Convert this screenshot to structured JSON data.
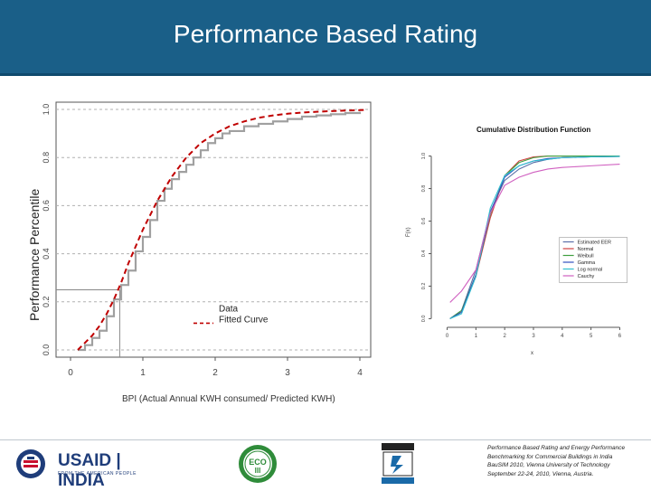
{
  "header": {
    "title": "Performance Based Rating"
  },
  "colors": {
    "header_bg": "#1a5f88",
    "fitted_curve": "#c00000",
    "data_curve": "#a0a0a0"
  },
  "chart_data": [
    {
      "type": "line",
      "title": "",
      "xlabel": "BPI (Actual Annual KWH consumed/ Predicted KWH)",
      "ylabel": "Performance Percentile",
      "xlim": [
        -0.2,
        4.15
      ],
      "ylim": [
        -0.03,
        1.03
      ],
      "xticks": [
        "0",
        "1",
        "2",
        "3",
        "4"
      ],
      "yticks": [
        "0.0",
        "0.2",
        "0.4",
        "0.6",
        "0.8",
        "1.0"
      ],
      "grid": true,
      "legend": "inside-bottom-right",
      "legend_entries": [
        "Data",
        "Fitted Curve"
      ],
      "reference_point": {
        "x": 0.68,
        "y": 0.25
      },
      "series": [
        {
          "name": "Data",
          "style": "step",
          "x": [
            0.1,
            0.2,
            0.3,
            0.4,
            0.5,
            0.6,
            0.7,
            0.8,
            0.9,
            1.0,
            1.1,
            1.2,
            1.3,
            1.4,
            1.5,
            1.6,
            1.7,
            1.8,
            1.9,
            2.0,
            2.1,
            2.2,
            2.4,
            2.6,
            2.8,
            3.0,
            3.2,
            3.4,
            3.6,
            3.8,
            4.0
          ],
          "y": [
            0.0,
            0.02,
            0.05,
            0.08,
            0.14,
            0.21,
            0.27,
            0.33,
            0.41,
            0.47,
            0.54,
            0.62,
            0.67,
            0.71,
            0.74,
            0.77,
            0.8,
            0.83,
            0.86,
            0.88,
            0.9,
            0.91,
            0.93,
            0.94,
            0.95,
            0.96,
            0.97,
            0.975,
            0.98,
            0.985,
            0.99
          ]
        },
        {
          "name": "Fitted Curve",
          "style": "dashed",
          "x": [
            0.1,
            0.2,
            0.3,
            0.4,
            0.5,
            0.6,
            0.7,
            0.8,
            0.9,
            1.0,
            1.1,
            1.2,
            1.3,
            1.4,
            1.5,
            1.6,
            1.8,
            2.0,
            2.2,
            2.4,
            2.6,
            2.8,
            3.0,
            3.2,
            3.4,
            3.6,
            3.8,
            4.0,
            4.1
          ],
          "y": [
            0.0,
            0.03,
            0.06,
            0.1,
            0.15,
            0.21,
            0.28,
            0.36,
            0.43,
            0.5,
            0.56,
            0.62,
            0.67,
            0.72,
            0.76,
            0.8,
            0.86,
            0.9,
            0.93,
            0.95,
            0.965,
            0.975,
            0.982,
            0.987,
            0.99,
            0.993,
            0.995,
            0.997,
            0.998
          ]
        }
      ]
    },
    {
      "type": "line",
      "title": "Cumulative Distribution Function",
      "xlabel": "x",
      "ylabel": "F(x)",
      "xlim": [
        -0.3,
        6.3
      ],
      "ylim": [
        -0.02,
        1.07
      ],
      "xticks": [
        "0",
        "1",
        "2",
        "3",
        "4",
        "5",
        "6"
      ],
      "yticks": [
        "0.0",
        "0.2",
        "0.4",
        "0.6",
        "0.8",
        "1.0"
      ],
      "grid": false,
      "legend": "inside-bottom-right",
      "series": [
        {
          "name": "Estimated EER",
          "color": "#5a6fa8",
          "x": [
            0.1,
            0.5,
            1.0,
            1.5,
            2.0,
            2.5,
            3.0,
            3.5,
            4.0,
            5.0,
            6.0
          ],
          "y": [
            0.0,
            0.05,
            0.3,
            0.66,
            0.85,
            0.92,
            0.96,
            0.98,
            0.99,
            0.995,
            0.997
          ]
        },
        {
          "name": "Normal",
          "color": "#d04040",
          "x": [
            0.1,
            0.5,
            1.0,
            1.5,
            2.0,
            2.5,
            3.0,
            3.5,
            4.0,
            5.0,
            6.0
          ],
          "y": [
            0.0,
            0.04,
            0.26,
            0.62,
            0.88,
            0.97,
            0.995,
            1.0,
            1.0,
            1.0,
            1.0
          ]
        },
        {
          "name": "Weibull",
          "color": "#40a040",
          "x": [
            0.1,
            0.5,
            1.0,
            1.5,
            2.0,
            2.5,
            3.0,
            3.5,
            4.0,
            5.0,
            6.0
          ],
          "y": [
            0.0,
            0.05,
            0.27,
            0.64,
            0.88,
            0.96,
            0.99,
            1.0,
            1.0,
            1.0,
            1.0
          ]
        },
        {
          "name": "Gamma",
          "color": "#3050c0",
          "x": [
            0.1,
            0.5,
            1.0,
            1.5,
            2.0,
            2.5,
            3.0,
            3.5,
            4.0,
            5.0,
            6.0
          ],
          "y": [
            0.0,
            0.04,
            0.27,
            0.65,
            0.87,
            0.94,
            0.97,
            0.985,
            0.99,
            0.995,
            0.998
          ]
        },
        {
          "name": "Log normal",
          "color": "#30c0d0",
          "x": [
            0.1,
            0.5,
            1.0,
            1.5,
            2.0,
            2.5,
            3.0,
            3.5,
            4.0,
            5.0,
            6.0
          ],
          "y": [
            0.0,
            0.03,
            0.26,
            0.68,
            0.88,
            0.94,
            0.97,
            0.98,
            0.99,
            0.995,
            0.998
          ]
        },
        {
          "name": "Cauchy",
          "color": "#d060c0",
          "x": [
            0.1,
            0.5,
            1.0,
            1.5,
            2.0,
            2.5,
            3.0,
            3.5,
            4.0,
            5.0,
            6.0
          ],
          "y": [
            0.1,
            0.17,
            0.3,
            0.65,
            0.82,
            0.87,
            0.9,
            0.92,
            0.93,
            0.94,
            0.95
          ]
        }
      ]
    }
  ],
  "footer": {
    "usaid_text": "USAID | INDIA",
    "usaid_sub": "FROM THE AMERICAN PEOPLE",
    "eco_text": "ECO",
    "eco_sub": "III",
    "citation": [
      "Performance Based Rating and Energy Performance",
      "Benchmarking for Commercial Buildings in India",
      "BauSIM 2010, Vienna University of Technology",
      "September 22-24, 2010, Vienna, Austria."
    ]
  }
}
